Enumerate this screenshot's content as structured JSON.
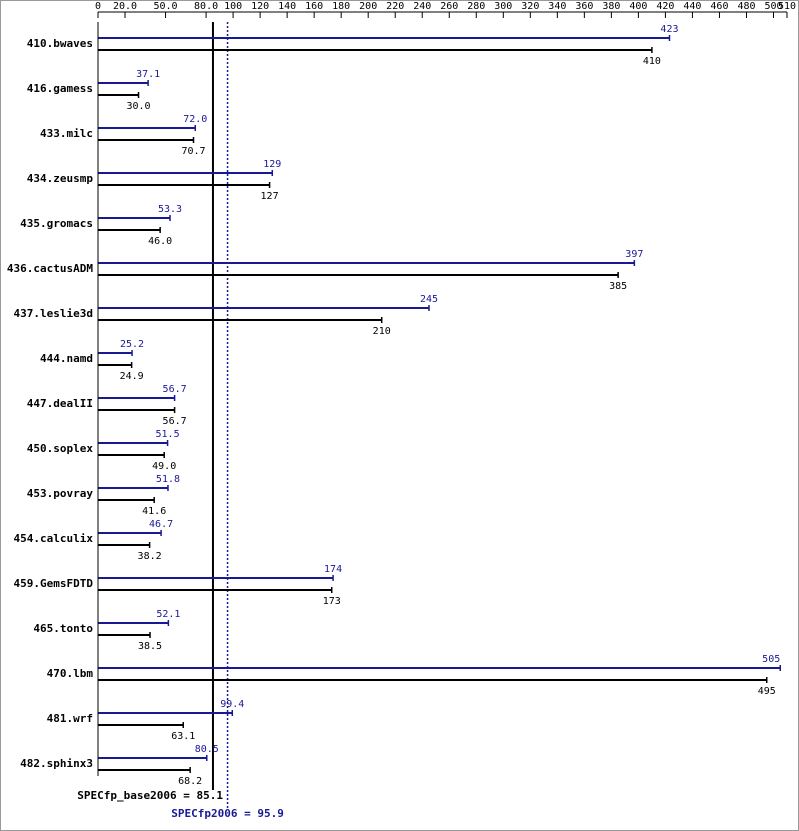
{
  "chart_data": {
    "type": "bar",
    "orientation": "horizontal",
    "categories": [
      "410.bwaves",
      "416.gamess",
      "433.milc",
      "434.zeusmp",
      "435.gromacs",
      "436.cactusADM",
      "437.leslie3d",
      "444.namd",
      "447.dealII",
      "450.soplex",
      "453.povray",
      "454.calculix",
      "459.GemsFDTD",
      "465.tonto",
      "470.lbm",
      "481.wrf",
      "482.sphinx3"
    ],
    "series": [
      {
        "color": "#191996",
        "values": [
          423,
          37.1,
          72.0,
          129,
          53.3,
          397,
          245,
          25.2,
          56.7,
          51.5,
          51.8,
          46.7,
          174,
          52.1,
          505,
          99.4,
          80.5
        ],
        "value_labels": [
          "423",
          "37.1",
          "72.0",
          "129",
          "53.3",
          "397",
          "245",
          "25.2",
          "56.7",
          "51.5",
          "51.8",
          "46.7",
          "174",
          "52.1",
          "505",
          "99.4",
          "80.5"
        ]
      },
      {
        "color": "#000000",
        "values": [
          410,
          30.0,
          70.7,
          127,
          46.0,
          385,
          210,
          24.9,
          56.7,
          49.0,
          41.6,
          38.2,
          173,
          38.5,
          495,
          63.1,
          68.2
        ],
        "value_labels": [
          "410",
          "30.0",
          "70.7",
          "127",
          "46.0",
          "385",
          "210",
          "24.9",
          "56.7",
          "49.0",
          "41.6",
          "38.2",
          "173",
          "38.5",
          "495",
          "63.1",
          "68.2"
        ]
      }
    ],
    "xlim": [
      0,
      510
    ],
    "xticks": [
      0,
      {
        "value": 20,
        "label": "20.0"
      },
      {
        "value": 50,
        "label": "50.0"
      },
      {
        "value": 80,
        "label": "80.0"
      },
      100,
      120,
      140,
      160,
      180,
      200,
      220,
      240,
      260,
      280,
      300,
      320,
      340,
      360,
      380,
      400,
      420,
      440,
      460,
      480,
      500,
      510
    ],
    "reference_lines": [
      {
        "label": "SPECfp_base2006 = 85.1",
        "value": 85.1,
        "color": "#000000"
      },
      {
        "label": "SPECfp2006 = 95.9",
        "value": 95.9,
        "color": "#191996"
      }
    ]
  }
}
